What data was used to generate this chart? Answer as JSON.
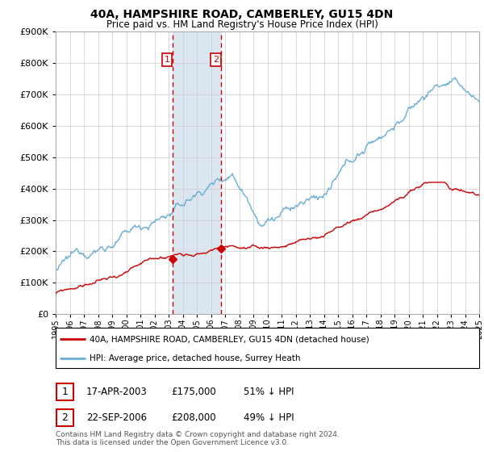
{
  "title": "40A, HAMPSHIRE ROAD, CAMBERLEY, GU15 4DN",
  "subtitle": "Price paid vs. HM Land Registry's House Price Index (HPI)",
  "legend_line1": "40A, HAMPSHIRE ROAD, CAMBERLEY, GU15 4DN (detached house)",
  "legend_line2": "HPI: Average price, detached house, Surrey Heath",
  "table_rows": [
    {
      "num": "1",
      "date": "17-APR-2003",
      "price": "£175,000",
      "hpi": "51% ↓ HPI"
    },
    {
      "num": "2",
      "date": "22-SEP-2006",
      "price": "£208,000",
      "hpi": "49% ↓ HPI"
    }
  ],
  "footnote": "Contains HM Land Registry data © Crown copyright and database right 2024.\nThis data is licensed under the Open Government Licence v3.0.",
  "sale1_year": 2003.29,
  "sale1_price": 175000,
  "sale2_year": 2006.73,
  "sale2_price": 208000,
  "hpi_color": "#6baed6",
  "sale_color": "#cc0000",
  "shade_color": "#dce6f1",
  "vline_color": "#cc0000",
  "background_color": "#ffffff",
  "grid_color": "#cccccc",
  "ylim": [
    0,
    900000
  ],
  "xlim_start": 1995,
  "xlim_end": 2025,
  "label1_price": 800000,
  "label2_price": 800000
}
